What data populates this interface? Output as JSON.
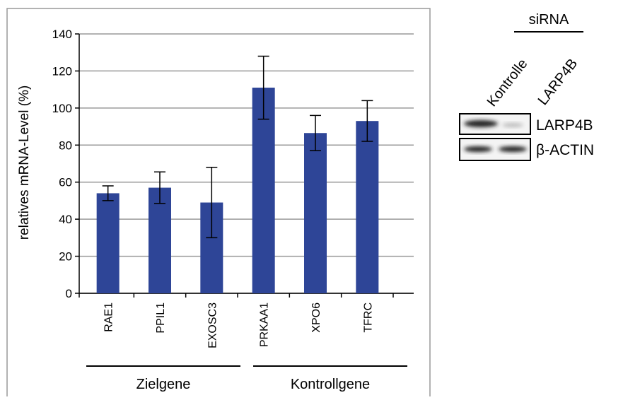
{
  "chart_data": {
    "type": "bar",
    "y_label": "relatives mRNA-Level (%)",
    "categories": [
      "RAE1",
      "PPIL1",
      "EXOSC3",
      "PRKAA1",
      "XPO6",
      "TFRC"
    ],
    "values": [
      54,
      57,
      49,
      111,
      86.5,
      93
    ],
    "errors": [
      4,
      8.5,
      19,
      17,
      9.5,
      11
    ],
    "color": "#2e4597",
    "ylim": [
      0,
      140
    ],
    "yticks": [
      0,
      20,
      40,
      60,
      80,
      100,
      120,
      140
    ],
    "grid": true,
    "groups": [
      "Zielgene",
      "Kontrollgene"
    ]
  },
  "blot": {
    "group_label": "siRNA",
    "lanes": [
      "Kontrolle",
      "LARP4B"
    ],
    "rows": [
      "LARP4B",
      "β-ACTIN"
    ]
  }
}
